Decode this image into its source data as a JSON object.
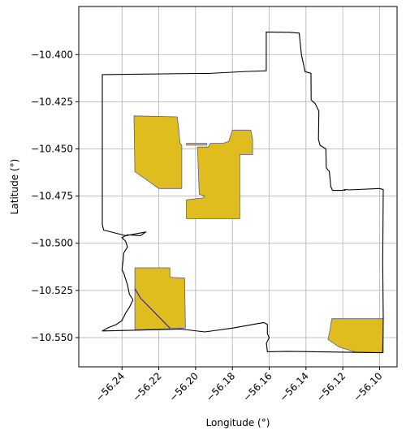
{
  "chart_data": {
    "type": "map",
    "title": "",
    "xlabel": "Longitude (°)",
    "ylabel": "Latitude (°)",
    "xlim": [
      -56.2635,
      -56.0905
    ],
    "ylim": [
      -10.5655,
      -10.3745
    ],
    "grid": true,
    "x_ticks": [
      -56.24,
      -56.22,
      -56.2,
      -56.18,
      -56.16,
      -56.14,
      -56.12,
      -56.1
    ],
    "x_tick_labels": [
      "−56.24",
      "−56.22",
      "−56.20",
      "−56.18",
      "−56.16",
      "−56.14",
      "−56.12",
      "−56.10"
    ],
    "y_ticks": [
      -10.4,
      -10.425,
      -10.45,
      -10.475,
      -10.5,
      -10.525,
      -10.55
    ],
    "y_tick_labels": [
      "−10.400",
      "−10.425",
      "−10.450",
      "−10.475",
      "−10.500",
      "−10.525",
      "−10.550"
    ],
    "colors": {
      "fill": "#e0bd1e",
      "edge": "#5a5a9a",
      "boundary": "#000000",
      "river": "#1a1acc",
      "grid": "#b0b0b0"
    },
    "boundary": [
      [
        -56.2507,
        -10.4106
      ],
      [
        -56.1993,
        -10.41
      ],
      [
        -56.193,
        -10.41
      ],
      [
        -56.1719,
        -10.4089
      ],
      [
        -56.1616,
        -10.4086
      ],
      [
        -56.1616,
        -10.388
      ],
      [
        -56.149,
        -10.3882
      ],
      [
        -56.1437,
        -10.3886
      ],
      [
        -56.1425,
        -10.4
      ],
      [
        -56.1405,
        -10.409
      ],
      [
        -56.1373,
        -10.41
      ],
      [
        -56.1372,
        -10.424
      ],
      [
        -56.135,
        -10.426
      ],
      [
        -56.133,
        -10.43
      ],
      [
        -56.1332,
        -10.445
      ],
      [
        -56.1324,
        -10.448
      ],
      [
        -56.1292,
        -10.45
      ],
      [
        -56.129,
        -10.46
      ],
      [
        -56.1273,
        -10.462
      ],
      [
        -56.1265,
        -10.47
      ],
      [
        -56.1256,
        -10.472
      ],
      [
        -56.12,
        -10.472
      ],
      [
        -56.119,
        -10.4715
      ],
      [
        -56.119,
        -10.472
      ],
      [
        -56.1183,
        -10.4715
      ],
      [
        -56.1166,
        -10.4717
      ],
      [
        -56.1,
        -10.471
      ],
      [
        -56.098,
        -10.4715
      ],
      [
        -56.0983,
        -10.51
      ],
      [
        -56.098,
        -10.54
      ],
      [
        -56.0983,
        -10.558
      ],
      [
        -56.1,
        -10.558
      ],
      [
        -56.135,
        -10.5575
      ],
      [
        -56.15,
        -10.5573
      ],
      [
        -56.161,
        -10.5575
      ],
      [
        -56.1615,
        -10.553
      ],
      [
        -56.16,
        -10.55
      ],
      [
        -56.161,
        -10.548
      ],
      [
        -56.161,
        -10.543
      ],
      [
        -56.163,
        -10.542
      ],
      [
        -56.18,
        -10.545
      ],
      [
        -56.195,
        -10.547
      ],
      [
        -56.208,
        -10.5455
      ],
      [
        -56.23,
        -10.546
      ],
      [
        -56.2507,
        -10.5465
      ],
      [
        -56.248,
        -10.545
      ],
      [
        -56.243,
        -10.543
      ],
      [
        -56.24,
        -10.541
      ],
      [
        -56.238,
        -10.537
      ],
      [
        -56.236,
        -10.534
      ],
      [
        -56.234,
        -10.53
      ],
      [
        -56.236,
        -10.527
      ],
      [
        -56.237,
        -10.522
      ],
      [
        -56.239,
        -10.516
      ],
      [
        -56.24,
        -10.514
      ],
      [
        -56.2395,
        -10.51
      ],
      [
        -56.239,
        -10.505
      ],
      [
        -56.237,
        -10.502
      ],
      [
        -56.238,
        -10.499
      ],
      [
        -56.24,
        -10.497
      ],
      [
        -56.237,
        -10.4955
      ],
      [
        -56.23,
        -10.496
      ],
      [
        -56.227,
        -10.494
      ],
      [
        -56.238,
        -10.496
      ],
      [
        -56.25,
        -10.493
      ],
      [
        -56.2507,
        -10.49
      ],
      [
        -56.2507,
        -10.4106
      ]
    ],
    "areas": [
      {
        "points": [
          [
            -56.2335,
            -10.4325
          ],
          [
            -56.21,
            -10.433
          ],
          [
            -56.209,
            -10.441
          ],
          [
            -56.2085,
            -10.447
          ],
          [
            -56.2075,
            -10.448
          ],
          [
            -56.2075,
            -10.471
          ],
          [
            -56.22,
            -10.471
          ],
          [
            -56.233,
            -10.462
          ]
        ]
      },
      {
        "points": [
          [
            -56.205,
            -10.447
          ],
          [
            -56.194,
            -10.447
          ],
          [
            -56.194,
            -10.448
          ],
          [
            -56.205,
            -10.448
          ]
        ]
      },
      {
        "points": [
          [
            -56.192,
            -10.447
          ],
          [
            -56.185,
            -10.447
          ],
          [
            -56.182,
            -10.446
          ],
          [
            -56.18,
            -10.44
          ],
          [
            -56.17,
            -10.44
          ],
          [
            -56.169,
            -10.445
          ],
          [
            -56.169,
            -10.453
          ],
          [
            -56.176,
            -10.453
          ],
          [
            -56.176,
            -10.487
          ],
          [
            -56.205,
            -10.487
          ],
          [
            -56.205,
            -10.477
          ],
          [
            -56.196,
            -10.476
          ],
          [
            -56.195,
            -10.475
          ],
          [
            -56.198,
            -10.474
          ],
          [
            -56.199,
            -10.449
          ],
          [
            -56.193,
            -10.449
          ]
        ]
      },
      {
        "points": [
          [
            -56.233,
            -10.513
          ],
          [
            -56.214,
            -10.513
          ],
          [
            -56.214,
            -10.518
          ],
          [
            -56.206,
            -10.5185
          ],
          [
            -56.2055,
            -10.545
          ],
          [
            -56.233,
            -10.546
          ]
        ]
      },
      {
        "points": [
          [
            -56.126,
            -10.54
          ],
          [
            -56.098,
            -10.54
          ],
          [
            -56.098,
            -10.558
          ],
          [
            -56.113,
            -10.5577
          ],
          [
            -56.122,
            -10.555
          ],
          [
            -56.128,
            -10.551
          ],
          [
            -56.127,
            -10.546
          ]
        ]
      }
    ],
    "river": [
      [
        -56.233,
        -10.524
      ],
      [
        -56.23,
        -10.529
      ],
      [
        -56.226,
        -10.533
      ],
      [
        -56.22,
        -10.539
      ],
      [
        -56.214,
        -10.545
      ]
    ]
  }
}
